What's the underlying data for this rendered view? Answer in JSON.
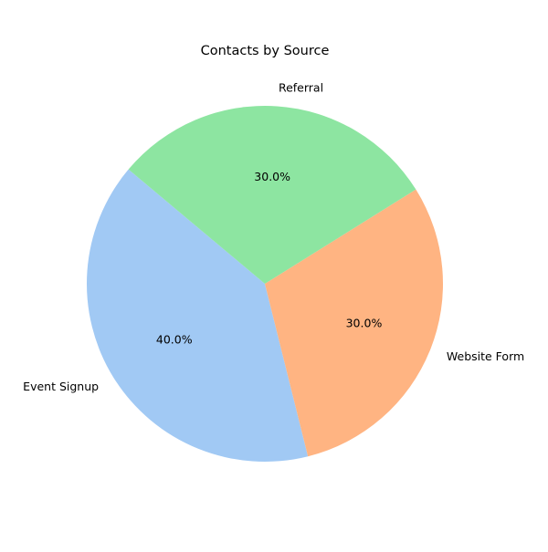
{
  "chart_data": {
    "type": "pie",
    "title": "Contacts by Source",
    "slices": [
      {
        "label": "Event Signup",
        "value": 40.0,
        "pct_label": "40.0%",
        "color": "#a1c9f4"
      },
      {
        "label": "Website Form",
        "value": 30.0,
        "pct_label": "30.0%",
        "color": "#ffb482"
      },
      {
        "label": "Referral",
        "value": 30.0,
        "pct_label": "30.0%",
        "color": "#8de5a1"
      }
    ],
    "start_angle_deg": 140,
    "legend": "none"
  }
}
